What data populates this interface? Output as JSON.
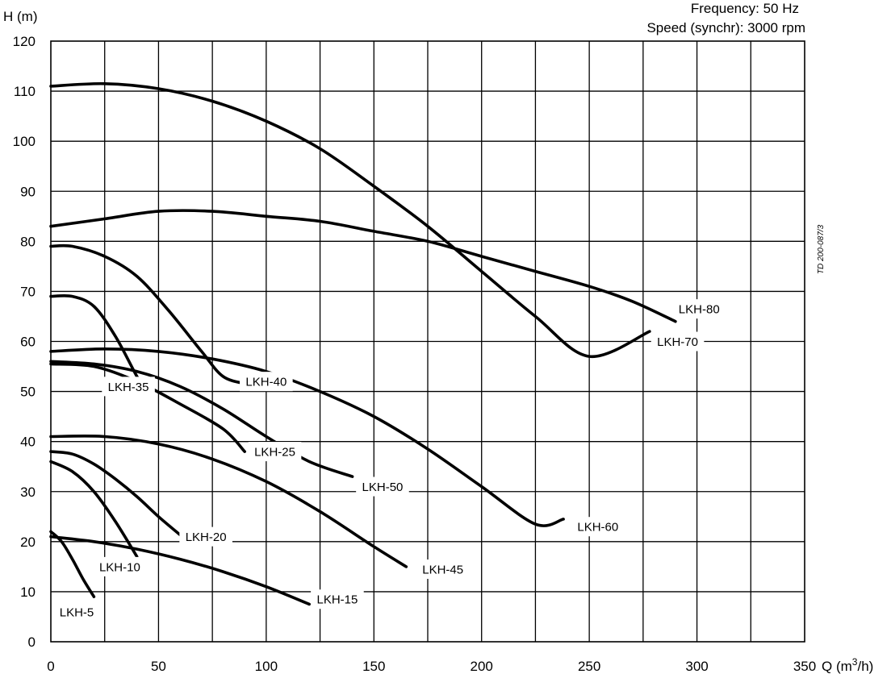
{
  "chart_data": {
    "type": "line",
    "title": "",
    "annotations": [
      "Frequency: 50 Hz",
      "Speed (synchr): 3000 rpm"
    ],
    "reference": "TD 200-087/3",
    "xlabel": "Q (m³/h)",
    "xlabel_prefix": "Q (m",
    "xlabel_sup": "3",
    "xlabel_suffix": "/h)",
    "ylabel": "H (m)",
    "xlim": [
      0,
      350
    ],
    "ylim": [
      0,
      120
    ],
    "x_ticks": [
      "0",
      "50",
      "100",
      "150",
      "200",
      "250",
      "300",
      "350"
    ],
    "y_ticks": [
      "0",
      "10",
      "20",
      "30",
      "40",
      "50",
      "60",
      "70",
      "80",
      "90",
      "100",
      "110",
      "120"
    ],
    "grid_x_step": 25,
    "grid_y_step": 10,
    "grid": true,
    "series": [
      {
        "name": "LKH-5",
        "points": [
          [
            0,
            22
          ],
          [
            5,
            20
          ],
          [
            10,
            16.5
          ],
          [
            15,
            12.5
          ],
          [
            20,
            9
          ]
        ]
      },
      {
        "name": "LKH-10",
        "points": [
          [
            0,
            36
          ],
          [
            10,
            34
          ],
          [
            20,
            30
          ],
          [
            30,
            24
          ],
          [
            40,
            17
          ]
        ]
      },
      {
        "name": "LKH-15",
        "points": [
          [
            0,
            21
          ],
          [
            20,
            20
          ],
          [
            40,
            18.5
          ],
          [
            60,
            16.5
          ],
          [
            80,
            14
          ],
          [
            100,
            11
          ],
          [
            120,
            7.5
          ]
        ]
      },
      {
        "name": "LKH-20",
        "points": [
          [
            0,
            38
          ],
          [
            10,
            37.5
          ],
          [
            20,
            35.5
          ],
          [
            30,
            32.5
          ],
          [
            40,
            29
          ],
          [
            50,
            25
          ],
          [
            61,
            21
          ]
        ]
      },
      {
        "name": "LKH-25",
        "points": [
          [
            0,
            55.5
          ],
          [
            20,
            55
          ],
          [
            40,
            52
          ],
          [
            60,
            47.5
          ],
          [
            80,
            42.5
          ],
          [
            90,
            38
          ]
        ]
      },
      {
        "name": "LKH-35",
        "points": [
          [
            0,
            69
          ],
          [
            10,
            69
          ],
          [
            20,
            67
          ],
          [
            30,
            61
          ],
          [
            40,
            53
          ],
          [
            43,
            51.5
          ]
        ]
      },
      {
        "name": "LKH-40",
        "points": [
          [
            0,
            79
          ],
          [
            10,
            79
          ],
          [
            25,
            77
          ],
          [
            40,
            73
          ],
          [
            55,
            66
          ],
          [
            70,
            58
          ],
          [
            80,
            53
          ],
          [
            91,
            51.5
          ]
        ]
      },
      {
        "name": "LKH-45",
        "points": [
          [
            0,
            41
          ],
          [
            25,
            41
          ],
          [
            50,
            39.5
          ],
          [
            75,
            36.5
          ],
          [
            100,
            32
          ],
          [
            125,
            26
          ],
          [
            150,
            19
          ],
          [
            165,
            15
          ]
        ]
      },
      {
        "name": "LKH-50",
        "points": [
          [
            0,
            56
          ],
          [
            20,
            55.5
          ],
          [
            40,
            54
          ],
          [
            60,
            51
          ],
          [
            80,
            46.5
          ],
          [
            100,
            41
          ],
          [
            120,
            36
          ],
          [
            140,
            33
          ]
        ]
      },
      {
        "name": "LKH-60",
        "points": [
          [
            0,
            58
          ],
          [
            25,
            58.5
          ],
          [
            50,
            58
          ],
          [
            75,
            56.5
          ],
          [
            100,
            54
          ],
          [
            125,
            50
          ],
          [
            150,
            45
          ],
          [
            175,
            38.5
          ],
          [
            200,
            31
          ],
          [
            225,
            23.5
          ],
          [
            238,
            24.5
          ]
        ]
      },
      {
        "name": "LKH-70",
        "points": [
          [
            0,
            111
          ],
          [
            25,
            111.5
          ],
          [
            50,
            110.5
          ],
          [
            75,
            108
          ],
          [
            100,
            104
          ],
          [
            125,
            98.5
          ],
          [
            150,
            91
          ],
          [
            175,
            83
          ],
          [
            200,
            74
          ],
          [
            225,
            65
          ],
          [
            250,
            57
          ],
          [
            278,
            62
          ]
        ]
      },
      {
        "name": "LKH-80",
        "points": [
          [
            0,
            83
          ],
          [
            25,
            84.5
          ],
          [
            50,
            86
          ],
          [
            75,
            86
          ],
          [
            100,
            85
          ],
          [
            125,
            84
          ],
          [
            150,
            82
          ],
          [
            175,
            80
          ],
          [
            200,
            77
          ],
          [
            225,
            74
          ],
          [
            250,
            71
          ],
          [
            270,
            68
          ],
          [
            290,
            64
          ]
        ]
      }
    ],
    "label_placement": {
      "LKH-5": [
        12,
        6
      ],
      "LKH-10": [
        32,
        15
      ],
      "LKH-15": [
        133,
        8.5
      ],
      "LKH-20": [
        72,
        21
      ],
      "LKH-25": [
        104,
        38
      ],
      "LKH-35": [
        36,
        51
      ],
      "LKH-40": [
        100,
        52
      ],
      "LKH-45": [
        182,
        14.5
      ],
      "LKH-50": [
        154,
        31
      ],
      "LKH-60": [
        254,
        23
      ],
      "LKH-70": [
        291,
        60
      ],
      "LKH-80": [
        301,
        66.5
      ]
    }
  }
}
